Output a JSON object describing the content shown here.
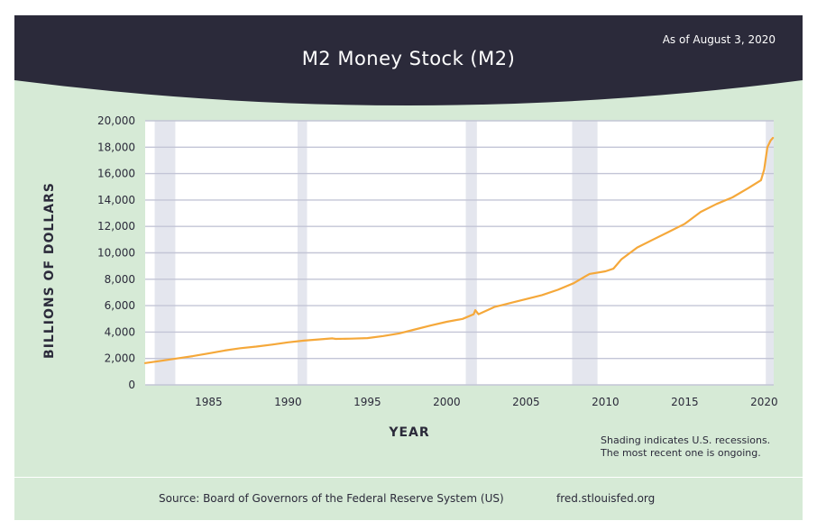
{
  "header": {
    "title": "M2 Money Stock (M2)",
    "as_of": "As of August 3, 2020"
  },
  "notes": {
    "line1": "Shading indicates U.S. recessions.",
    "line2": "The most recent one is ongoing."
  },
  "footer": {
    "source": "Source: Board of Governors of the Federal Reserve System (US)",
    "url": "fred.stlouisfed.org"
  },
  "colors": {
    "header_bg": "#2b2a3a",
    "panel_bg": "#d6ead6",
    "plot_bg": "#ffffff",
    "recession": "#e4e6ee",
    "grid": "#c3c5d6",
    "line": "#f5a83a",
    "text": "#2b2a3a"
  },
  "chart_data": {
    "type": "line",
    "title": "M2 Money Stock (M2)",
    "xlabel": "YEAR",
    "ylabel": "BILLIONS OF DOLLARS",
    "xlim": [
      1981,
      2020.6
    ],
    "ylim": [
      0,
      20000
    ],
    "x_ticks": [
      1985,
      1990,
      1995,
      2000,
      2005,
      2010,
      2015,
      2020
    ],
    "y_ticks": [
      0,
      2000,
      4000,
      6000,
      8000,
      10000,
      12000,
      14000,
      16000,
      18000,
      20000
    ],
    "y_tick_labels": [
      "0",
      "2,000",
      "4,000",
      "6,000",
      "8,000",
      "10,000",
      "12,000",
      "14,000",
      "16,000",
      "18,000",
      "20,000"
    ],
    "grid": true,
    "recessions": [
      [
        1981.6,
        1982.9
      ],
      [
        1990.6,
        1991.2
      ],
      [
        2001.2,
        2001.9
      ],
      [
        2007.9,
        2009.5
      ],
      [
        2020.1,
        2020.6
      ]
    ],
    "series": [
      {
        "x": [
          1981.0,
          1982.0,
          1983.0,
          1984.0,
          1985.0,
          1986.0,
          1987.0,
          1988.0,
          1989.0,
          1990.0,
          1991.0,
          1992.0,
          1992.8,
          1993.0,
          1994.0,
          1995.0,
          1996.0,
          1997.0,
          1998.0,
          1999.0,
          2000.0,
          2001.0,
          2001.7,
          2001.8,
          2002.0,
          2003.0,
          2003.5,
          2004.0,
          2005.0,
          2006.0,
          2007.0,
          2008.0,
          2008.7,
          2009.0,
          2010.0,
          2010.5,
          2011.0,
          2012.0,
          2013.0,
          2014.0,
          2015.0,
          2016.0,
          2017.0,
          2018.0,
          2019.0,
          2019.8,
          2020.0,
          2020.2,
          2020.4,
          2020.55
        ],
        "y": [
          1650,
          1820,
          2000,
          2180,
          2380,
          2600,
          2780,
          2900,
          3050,
          3220,
          3350,
          3450,
          3520,
          3480,
          3500,
          3540,
          3700,
          3900,
          4200,
          4500,
          4780,
          5000,
          5350,
          5650,
          5350,
          5900,
          6050,
          6200,
          6500,
          6800,
          7200,
          7700,
          8200,
          8400,
          8600,
          8800,
          9500,
          10400,
          11000,
          11600,
          12200,
          13100,
          13700,
          14200,
          14900,
          15500,
          16300,
          18000,
          18500,
          18700
        ]
      }
    ]
  }
}
